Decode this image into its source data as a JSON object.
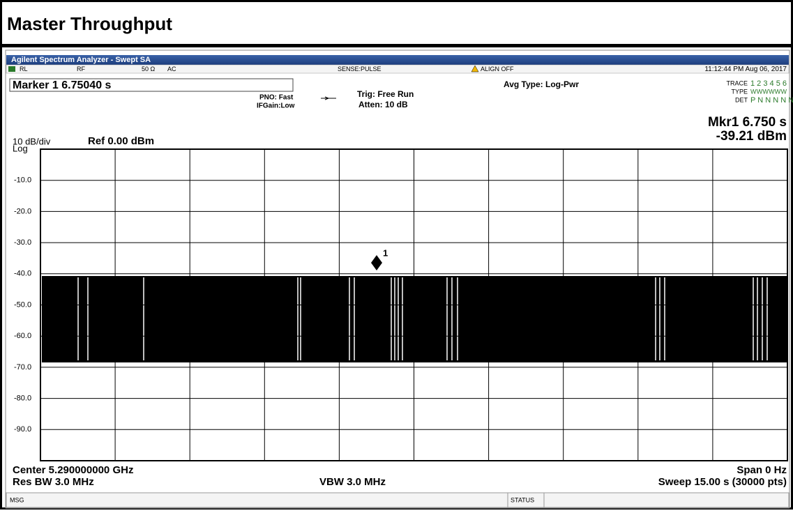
{
  "header": {
    "title": "Master Throughput"
  },
  "window": {
    "title": "Agilent Spectrum Analyzer - Swept SA"
  },
  "status_row": {
    "rl": "RL",
    "rf": "RF",
    "impedance": "50 Ω",
    "coupling": "AC",
    "sense": "SENSE:PULSE",
    "align": "ALIGN OFF",
    "datetime": "11:12:44 PM Aug 06, 2017"
  },
  "settings": {
    "marker": "Marker 1 6.75040 s",
    "pno": "PNO: Fast",
    "ifgain": "IFGain:Low",
    "trig": "Trig: Free Run",
    "atten": "Atten: 10 dB",
    "avg_type": "Avg Type: Log-Pwr",
    "trace_label": "TRACE",
    "trace_values": "1 2 3 4 5 6",
    "type_label": "TYPE",
    "type_values": "WWWWWW",
    "det_label": "DET",
    "det_values": "P N N N N N"
  },
  "marker_readout": {
    "line1": "Mkr1 6.750 s",
    "line2": "-39.21 dBm",
    "marker_id": "1"
  },
  "scale": {
    "div": "10 dB/div",
    "mode": "Log",
    "ref": "Ref 0.00 dBm"
  },
  "plot": {
    "y_labels": [
      "-10.0",
      "-20.0",
      "-30.0",
      "-40.0",
      "-50.0",
      "-60.0",
      "-70.0",
      "-80.0",
      "-90.0"
    ]
  },
  "footer": {
    "center": "Center 5.290000000 GHz",
    "res_bw": "Res BW 3.0 MHz",
    "vbw": "VBW 3.0 MHz",
    "span": "Span 0 Hz",
    "sweep": "Sweep  15.00 s (30000 pts)"
  },
  "statusbar": {
    "msg": "MSG",
    "status": "STATUS"
  }
}
